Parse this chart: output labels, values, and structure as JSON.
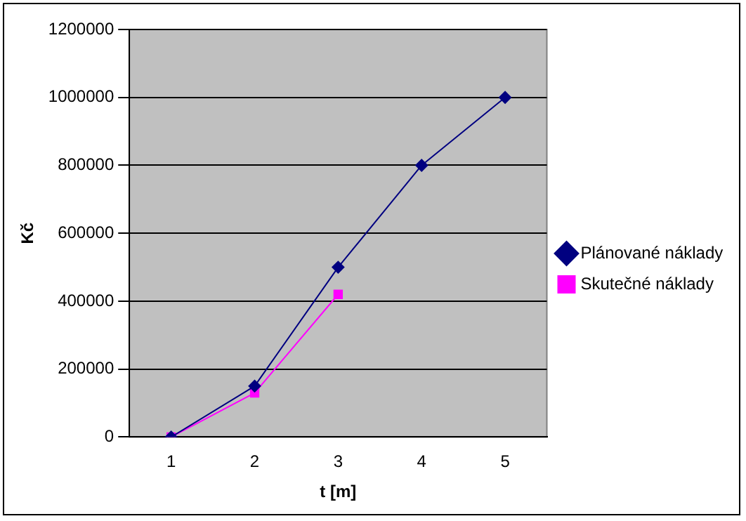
{
  "chart_data": {
    "type": "line",
    "xlabel": "t [m]",
    "ylabel": "Kč",
    "categories": [
      "1",
      "2",
      "3",
      "4",
      "5"
    ],
    "series": [
      {
        "name": "Plánované náklady",
        "color": "#000080",
        "marker": "diamond",
        "values": [
          0,
          150000,
          500000,
          800000,
          1000000
        ]
      },
      {
        "name": "Skutečné náklady",
        "color": "#ff00ff",
        "marker": "square",
        "values": [
          0,
          130000,
          420000,
          null,
          null
        ]
      }
    ],
    "ylim": [
      0,
      1200000
    ],
    "yticks": [
      0,
      200000,
      400000,
      600000,
      800000,
      1000000,
      1200000
    ],
    "grid": "y",
    "legend": "right",
    "line_style": "solid"
  }
}
